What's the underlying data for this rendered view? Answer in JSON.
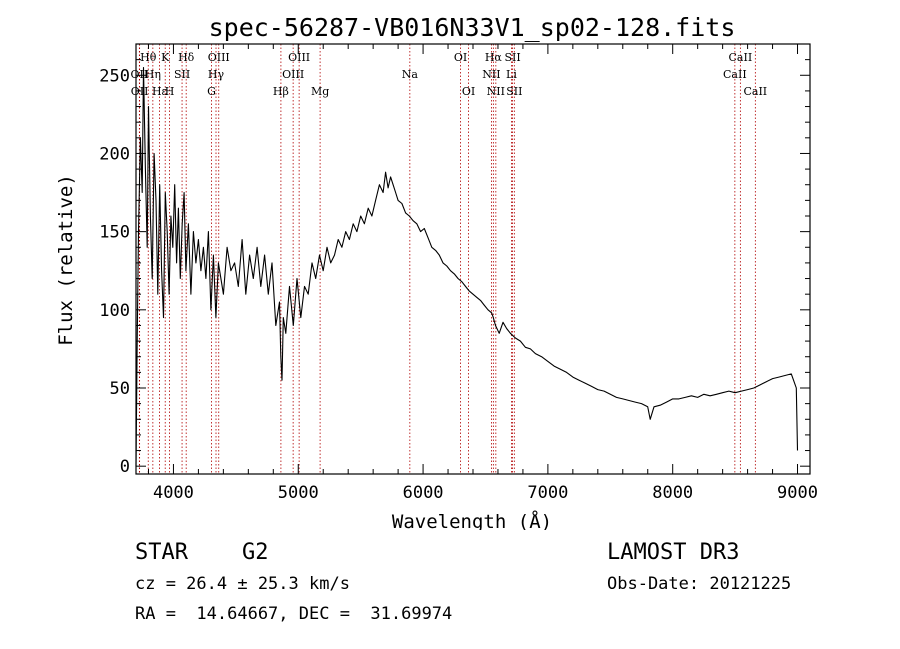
{
  "chart_data": {
    "type": "line",
    "title": "spec-56287-VB016N33V1_sp02-128.fits",
    "xlabel": "Wavelength (Å)",
    "ylabel": "Flux (relative)",
    "xlim": [
      3700,
      9100
    ],
    "ylim": [
      -5,
      270
    ],
    "x_ticks": [
      4000,
      5000,
      6000,
      7000,
      8000,
      9000
    ],
    "y_ticks": [
      0,
      50,
      100,
      150,
      200,
      250
    ],
    "x_tick_labels": [
      "4000",
      "5000",
      "6000",
      "7000",
      "8000",
      "9000"
    ],
    "y_tick_labels": [
      "0",
      "50",
      "100",
      "150",
      "200",
      "250"
    ],
    "series": [
      {
        "name": "flux",
        "x": [
          3700,
          3710,
          3720,
          3735,
          3750,
          3760,
          3775,
          3790,
          3800,
          3815,
          3830,
          3845,
          3860,
          3875,
          3890,
          3905,
          3920,
          3935,
          3950,
          3965,
          3980,
          3995,
          4010,
          4025,
          4040,
          4055,
          4070,
          4085,
          4100,
          4120,
          4140,
          4160,
          4180,
          4200,
          4220,
          4240,
          4260,
          4280,
          4300,
          4320,
          4340,
          4360,
          4380,
          4400,
          4430,
          4460,
          4490,
          4520,
          4550,
          4580,
          4610,
          4640,
          4670,
          4700,
          4730,
          4760,
          4790,
          4820,
          4850,
          4860,
          4870,
          4880,
          4900,
          4930,
          4960,
          4990,
          5020,
          5050,
          5080,
          5110,
          5140,
          5170,
          5200,
          5230,
          5260,
          5290,
          5320,
          5350,
          5380,
          5410,
          5440,
          5470,
          5500,
          5530,
          5560,
          5590,
          5620,
          5650,
          5680,
          5700,
          5720,
          5740,
          5760,
          5780,
          5800,
          5830,
          5860,
          5890,
          5920,
          5950,
          5980,
          6010,
          6040,
          6070,
          6100,
          6130,
          6160,
          6190,
          6220,
          6250,
          6280,
          6310,
          6340,
          6370,
          6400,
          6430,
          6460,
          6490,
          6520,
          6550,
          6563,
          6580,
          6610,
          6640,
          6670,
          6700,
          6740,
          6780,
          6820,
          6860,
          6900,
          6950,
          7000,
          7050,
          7100,
          7150,
          7200,
          7250,
          7300,
          7350,
          7400,
          7450,
          7500,
          7550,
          7600,
          7650,
          7700,
          7750,
          7800,
          7820,
          7850,
          7900,
          7950,
          8000,
          8050,
          8100,
          8150,
          8200,
          8250,
          8300,
          8350,
          8400,
          8450,
          8500,
          8550,
          8600,
          8650,
          8700,
          8750,
          8800,
          8850,
          8900,
          8950,
          8990,
          9000
        ],
        "y": [
          0,
          80,
          150,
          210,
          175,
          255,
          190,
          140,
          230,
          160,
          120,
          200,
          170,
          110,
          180,
          125,
          95,
          175,
          150,
          110,
          160,
          140,
          180,
          130,
          165,
          120,
          155,
          175,
          125,
          155,
          110,
          150,
          130,
          145,
          125,
          140,
          120,
          150,
          100,
          135,
          95,
          130,
          120,
          110,
          140,
          125,
          130,
          115,
          145,
          110,
          135,
          120,
          140,
          115,
          135,
          110,
          130,
          90,
          105,
          70,
          55,
          95,
          85,
          115,
          90,
          120,
          95,
          115,
          110,
          130,
          120,
          135,
          125,
          140,
          130,
          135,
          145,
          140,
          150,
          145,
          155,
          150,
          160,
          155,
          165,
          160,
          170,
          180,
          175,
          188,
          178,
          185,
          180,
          175,
          170,
          168,
          162,
          160,
          157,
          155,
          150,
          152,
          146,
          140,
          138,
          135,
          130,
          128,
          125,
          123,
          120,
          118,
          115,
          112,
          110,
          108,
          106,
          103,
          100,
          98,
          95,
          90,
          85,
          92,
          88,
          85,
          82,
          80,
          76,
          75,
          72,
          70,
          67,
          64,
          62,
          60,
          57,
          55,
          53,
          51,
          49,
          48,
          46,
          44,
          43,
          42,
          41,
          40,
          38,
          30,
          38,
          39,
          41,
          43,
          43,
          44,
          45,
          44,
          46,
          45,
          46,
          47,
          48,
          47,
          48,
          49,
          50,
          52,
          54,
          56,
          57,
          58,
          59,
          50,
          10
        ]
      }
    ],
    "annotations": [
      {
        "label": "Hθ",
        "wavelength": 3798,
        "row": 1
      },
      {
        "label": "Hη",
        "wavelength": 3835,
        "row": 2
      },
      {
        "label": "OII",
        "wavelength": 3727,
        "row": 2
      },
      {
        "label": "OII",
        "wavelength": 3729,
        "row": 3
      },
      {
        "label": "Hε",
        "wavelength": 3889,
        "row": 3
      },
      {
        "label": "K",
        "wavelength": 3934,
        "row": 1
      },
      {
        "label": "H",
        "wavelength": 3969,
        "row": 3
      },
      {
        "label": "SII",
        "wavelength": 4069,
        "row": 2
      },
      {
        "label": "Hδ",
        "wavelength": 4102,
        "row": 1
      },
      {
        "label": "OIII",
        "wavelength": 4363,
        "row": 1
      },
      {
        "label": "Hγ",
        "wavelength": 4341,
        "row": 2
      },
      {
        "label": "G",
        "wavelength": 4305,
        "row": 3
      },
      {
        "label": "Hβ",
        "wavelength": 4861,
        "row": 3
      },
      {
        "label": "OIII",
        "wavelength": 5007,
        "row": 1
      },
      {
        "label": "OIII",
        "wavelength": 4959,
        "row": 2
      },
      {
        "label": "Mg",
        "wavelength": 5175,
        "row": 3
      },
      {
        "label": "Na",
        "wavelength": 5894,
        "row": 2
      },
      {
        "label": "OI",
        "wavelength": 6300,
        "row": 1
      },
      {
        "label": "OI",
        "wavelength": 6364,
        "row": 3
      },
      {
        "label": "Hα",
        "wavelength": 6563,
        "row": 1
      },
      {
        "label": "SII",
        "wavelength": 6717,
        "row": 1
      },
      {
        "label": "NII",
        "wavelength": 6548,
        "row": 2
      },
      {
        "label": "Li",
        "wavelength": 6708,
        "row": 2
      },
      {
        "label": "NII",
        "wavelength": 6583,
        "row": 3
      },
      {
        "label": "SII",
        "wavelength": 6731,
        "row": 3
      },
      {
        "label": "CaII",
        "wavelength": 8542,
        "row": 1
      },
      {
        "label": "CaII",
        "wavelength": 8498,
        "row": 2
      },
      {
        "label": "CaII",
        "wavelength": 8662,
        "row": 3
      }
    ]
  },
  "info": {
    "object_type": "STAR",
    "subclass": "G2",
    "survey": "LAMOST DR3",
    "cz": "cz = 26.4 ± 25.3 km/s",
    "obs_date": "Obs-Date: 20121225",
    "coords": "RA =  14.64667, DEC =  31.69974"
  },
  "colors": {
    "line": "#000000",
    "marker": "#b00000",
    "background": "#ffffff"
  }
}
